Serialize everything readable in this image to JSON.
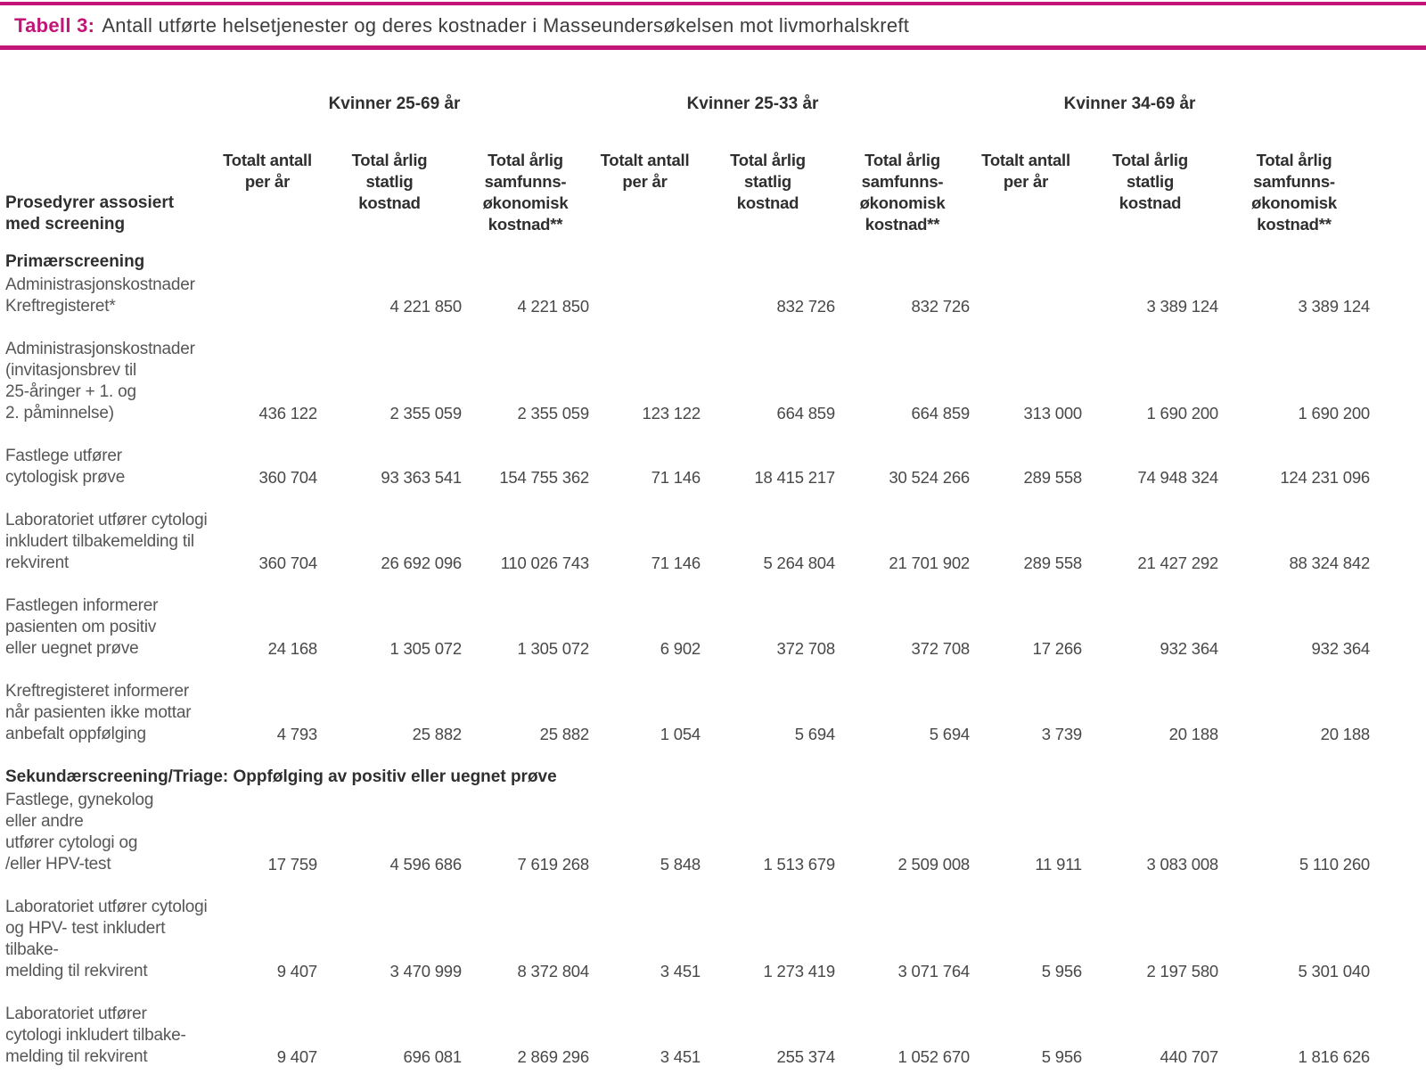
{
  "colors": {
    "accent": "#c21577"
  },
  "title": {
    "prefix": "Tabell 3:",
    "text": "Antall utførte helsetjenester og deres kostnader i Masseundersøkelsen mot livmorhalskreft"
  },
  "table": {
    "row_header": "Prosedyrer assosiert\nmed screening",
    "groups": [
      {
        "label": "Kvinner 25-69 år"
      },
      {
        "label": "Kvinner 25-33 år"
      },
      {
        "label": "Kvinner 34-69 år"
      }
    ],
    "column_headers": [
      "Totalt antall\nper år",
      "Total årlig\nstatlig\nkostnad",
      "Total årlig\nsamfunns-\nøkonomisk\nkostnad**",
      "Totalt antall\nper år",
      "Total årlig\nstatlig\nkostnad",
      "Total årlig\nsamfunns-\nøkonomisk\nkostnad**",
      "Totalt antall\nper år",
      "Total årlig\nstatlig\nkostnad",
      "Total årlig\nsamfunns-\nøkonomisk\nkostnad**"
    ],
    "rows": [
      {
        "type": "section",
        "label": "Primærscreening"
      },
      {
        "type": "data",
        "label": "Administrasjonskostnader\nKreftregisteret*",
        "values": [
          "",
          "4 221 850",
          "4 221 850",
          "",
          "832 726",
          "832 726",
          "",
          "3 389 124",
          "3 389 124"
        ]
      },
      {
        "type": "data",
        "label": "Administrasjonskostnader\n(invitasjonsbrev til\n25-åringer + 1. og\n2. påminnelse)",
        "values": [
          "436 122",
          "2 355 059",
          "2 355 059",
          "123 122",
          "664 859",
          "664 859",
          "313 000",
          "1 690 200",
          "1 690 200"
        ]
      },
      {
        "type": "data",
        "label": "Fastlege utfører\ncytologisk prøve",
        "values": [
          "360 704",
          "93 363 541",
          "154 755 362",
          "71 146",
          "18 415 217",
          "30 524 266",
          "289 558",
          "74 948 324",
          "124 231 096"
        ]
      },
      {
        "type": "data",
        "label": "Laboratoriet  utfører cytologi\ninkludert tilbakemelding til\nrekvirent",
        "values": [
          "360 704",
          "26 692 096",
          "110 026 743",
          "71 146",
          "5 264 804",
          "21 701 902",
          "289 558",
          "21 427 292",
          "88 324 842"
        ]
      },
      {
        "type": "data",
        "label": "Fastlegen informerer\npasienten om positiv\neller uegnet prøve",
        "values": [
          "24 168",
          "1 305 072",
          "1 305 072",
          "6 902",
          "372 708",
          "372 708",
          "17 266",
          "932 364",
          "932 364"
        ]
      },
      {
        "type": "data",
        "label": "Kreftregisteret informerer\nnår pasienten ikke mottar\nanbefalt oppfølging",
        "values": [
          "4 793",
          "25 882",
          "25 882",
          "1 054",
          "5 694",
          "5 694",
          "3 739",
          "20 188",
          "20 188"
        ]
      },
      {
        "type": "section",
        "label": "Sekundærscreening/Triage: Oppfølging av positiv eller uegnet prøve"
      },
      {
        "type": "data",
        "label": "Fastlege, gynekolog\neller andre\nutfører cytologi og\n/eller HPV-test",
        "values": [
          "17 759",
          "4 596 686",
          "7 619 268",
          "5 848",
          "1 513 679",
          "2 509 008",
          "11 911",
          "3 083 008",
          "5 110 260"
        ]
      },
      {
        "type": "data",
        "label": "Laboratoriet utfører cytologi\nog HPV- test inkludert tilbake-\nmelding til rekvirent",
        "values": [
          "9 407",
          "3 470 999",
          "8 372 804",
          "3 451",
          "1 273 419",
          "3 071 764",
          "5 956",
          "2 197 580",
          "5 301 040"
        ]
      },
      {
        "type": "data",
        "label": "Laboratoriet  utfører\ncytologi inkludert tilbake-\nmelding til rekvirent",
        "values": [
          "9 407",
          "696 081",
          "2 869 296",
          "3 451",
          "255 374",
          "1 052 670",
          "5 956",
          "440 707",
          "1 816 626"
        ]
      }
    ]
  }
}
